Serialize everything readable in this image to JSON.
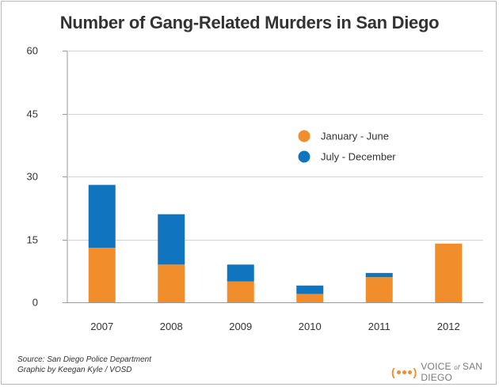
{
  "chart_data": {
    "type": "bar",
    "stacked": true,
    "title": "Number of Gang-Related Murders in San Diego",
    "xlabel": "",
    "ylabel": "",
    "ylim": [
      0,
      60
    ],
    "yticks": [
      0,
      15,
      30,
      45,
      60
    ],
    "categories": [
      "2007",
      "2008",
      "2009",
      "2010",
      "2011",
      "2012"
    ],
    "series": [
      {
        "name": "January - June",
        "color": "#f28d2b",
        "values": [
          13,
          9,
          5,
          2,
          6,
          14
        ]
      },
      {
        "name": "July - December",
        "color": "#1075be",
        "values": [
          15,
          12,
          4,
          2,
          1,
          0
        ]
      }
    ],
    "legend_position": "upper-right"
  },
  "footer": {
    "source": "Source: San Diego Police Department",
    "credit": "Graphic by Keegan Kyle / VOSD"
  },
  "brand": {
    "name_start": "VOICE",
    "name_of": "of",
    "name_end": "SAN DIEGO"
  }
}
